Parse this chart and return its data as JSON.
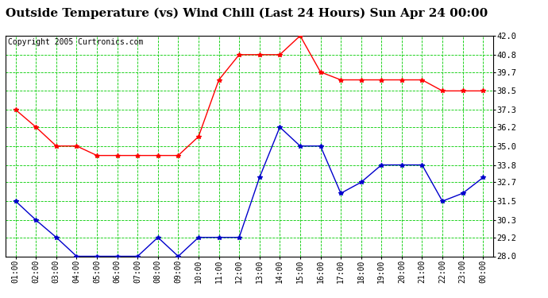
{
  "title": "Outside Temperature (vs) Wind Chill (Last 24 Hours) Sun Apr 24 00:00",
  "copyright": "Copyright 2005 Curtronics.com",
  "x_labels": [
    "01:00",
    "02:00",
    "03:00",
    "04:00",
    "05:00",
    "06:00",
    "07:00",
    "08:00",
    "09:00",
    "10:00",
    "11:00",
    "12:00",
    "13:00",
    "14:00",
    "15:00",
    "16:00",
    "17:00",
    "18:00",
    "19:00",
    "20:00",
    "21:00",
    "22:00",
    "23:00",
    "00:00"
  ],
  "red_data": [
    37.3,
    36.2,
    35.0,
    35.0,
    34.4,
    34.4,
    34.4,
    34.4,
    34.4,
    35.6,
    39.2,
    40.8,
    40.8,
    40.8,
    42.0,
    39.7,
    39.2,
    39.2,
    39.2,
    39.2,
    39.2,
    38.5,
    38.5,
    38.5
  ],
  "blue_data": [
    31.5,
    30.3,
    29.2,
    28.0,
    28.0,
    28.0,
    28.0,
    29.2,
    28.0,
    29.2,
    29.2,
    29.2,
    33.0,
    36.2,
    35.0,
    35.0,
    32.0,
    32.7,
    33.8,
    33.8,
    33.8,
    31.5,
    32.0,
    33.0
  ],
  "ylim_min": 28.0,
  "ylim_max": 42.0,
  "y_ticks": [
    28.0,
    29.2,
    30.3,
    31.5,
    32.7,
    33.8,
    35.0,
    36.2,
    37.3,
    38.5,
    39.7,
    40.8,
    42.0
  ],
  "red_color": "#ff0000",
  "blue_color": "#0000cc",
  "grid_color": "#00cc00",
  "bg_color": "#ffffff",
  "title_fontsize": 11,
  "copyright_fontsize": 7,
  "tick_fontsize": 7,
  "ytick_fontsize": 7.5
}
